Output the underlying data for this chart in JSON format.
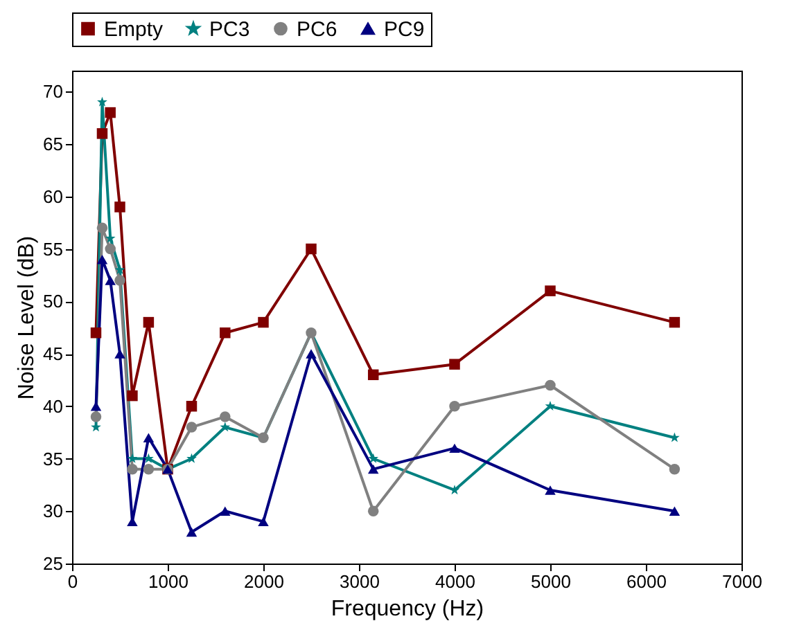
{
  "chart_data": {
    "type": "line",
    "xlabel": "Frequency (Hz)",
    "ylabel": "Noise Level (dB)",
    "x": [
      250,
      315,
      400,
      500,
      630,
      800,
      1000,
      1250,
      1600,
      2000,
      2500,
      3150,
      4000,
      5000,
      6300
    ],
    "series": [
      {
        "name": "Empty",
        "color": "#800000",
        "marker": "square",
        "values": [
          47,
          66,
          68,
          59,
          41,
          48,
          34,
          40,
          47,
          48,
          55,
          43,
          44,
          51,
          48
        ]
      },
      {
        "name": "PC3",
        "color": "#008080",
        "marker": "star",
        "values": [
          38,
          69,
          56,
          53,
          35,
          35,
          34,
          35,
          38,
          37,
          47,
          35,
          32,
          40,
          37
        ]
      },
      {
        "name": "PC6",
        "color": "#808080",
        "marker": "circle",
        "values": [
          39,
          57,
          55,
          52,
          34,
          34,
          34,
          38,
          39,
          37,
          47,
          30,
          40,
          42,
          34
        ]
      },
      {
        "name": "PC9",
        "color": "#000080",
        "marker": "triangle",
        "values": [
          40,
          54,
          52,
          45,
          29,
          37,
          34,
          28,
          30,
          29,
          45,
          34,
          36,
          32,
          30
        ]
      }
    ],
    "xlim": [
      0,
      7000
    ],
    "xticks": [
      0,
      1000,
      2000,
      3000,
      4000,
      5000,
      6000,
      7000
    ],
    "ylim": [
      25,
      72
    ],
    "yticks": [
      25,
      30,
      35,
      40,
      45,
      50,
      55,
      60,
      65,
      70
    ],
    "grid": false,
    "legend": "top",
    "line_style": "solid"
  }
}
